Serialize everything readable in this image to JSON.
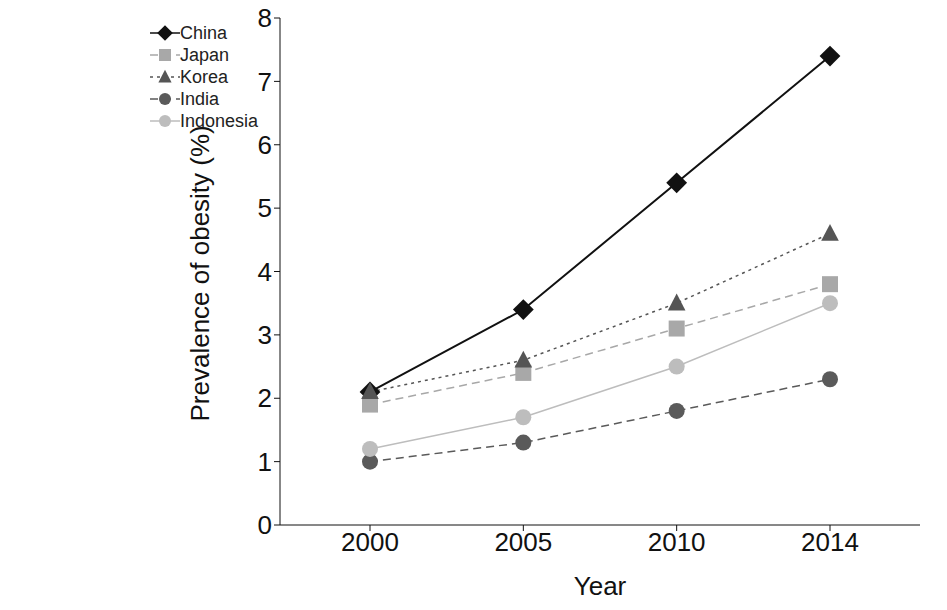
{
  "chart_data": {
    "type": "line",
    "x_label": "Year",
    "y_label": "Prevalence of obesity (%)",
    "categories": [
      "2000",
      "2005",
      "2010",
      "2014"
    ],
    "series": [
      {
        "name": "China",
        "color": "#111111",
        "marker": "diamond",
        "line_style": "solid",
        "values": [
          2.1,
          3.4,
          5.4,
          7.4
        ]
      },
      {
        "name": "Japan",
        "color": "#a8a8a8",
        "marker": "square",
        "line_style": "dashed",
        "values": [
          1.9,
          2.4,
          3.1,
          3.8
        ]
      },
      {
        "name": "Korea",
        "color": "#555555",
        "marker": "triangle",
        "line_style": "dotted",
        "values": [
          2.1,
          2.6,
          3.5,
          4.6
        ]
      },
      {
        "name": "India",
        "color": "#5a5a5a",
        "marker": "circle",
        "line_style": "dashed",
        "values": [
          1.0,
          1.3,
          1.8,
          2.3
        ]
      },
      {
        "name": "Indonesia",
        "color": "#bdbdbd",
        "marker": "circle",
        "line_style": "solid",
        "values": [
          1.2,
          1.7,
          2.5,
          3.5
        ]
      }
    ],
    "ylim": [
      0,
      8
    ],
    "yticks": [
      0,
      1,
      2,
      3,
      4,
      5,
      6,
      7,
      8
    ],
    "grid": false,
    "legend": "upper left"
  }
}
